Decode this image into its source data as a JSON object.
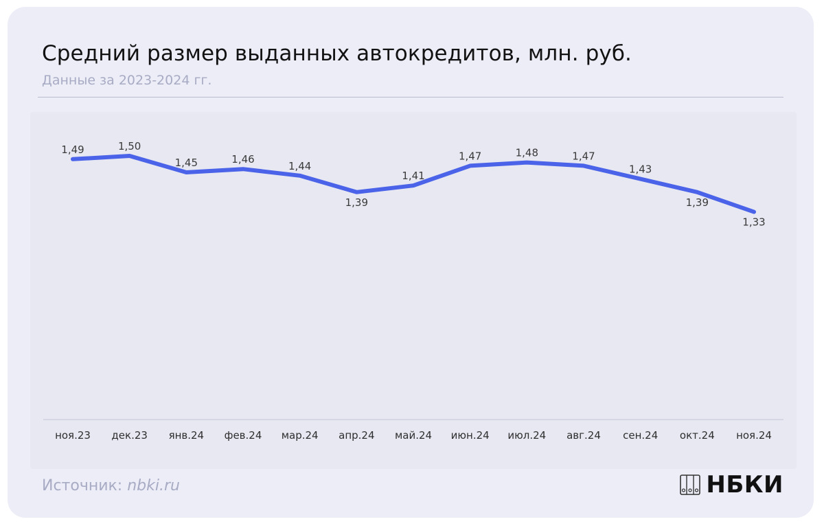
{
  "header": {
    "title": "Средний размер выданных автокредитов, млн. руб.",
    "subtitle": "Данные за 2023-2024 гг."
  },
  "footer": {
    "source_label": "Источник:",
    "source_site": "nbki.ru",
    "logo_text": "НБКИ"
  },
  "colors": {
    "line": "#4a63e8",
    "label": "#3a3a3a",
    "axis": "#c3c6d6"
  },
  "chart_data": {
    "type": "line",
    "categories": [
      "ноя.23",
      "дек.23",
      "янв.24",
      "фев.24",
      "мар.24",
      "апр.24",
      "май.24",
      "июн.24",
      "июл.24",
      "авг.24",
      "сен.24",
      "окт.24",
      "ноя.24"
    ],
    "series": [
      {
        "values": [
          1.49,
          1.5,
          1.45,
          1.46,
          1.44,
          1.39,
          1.41,
          1.47,
          1.48,
          1.47,
          1.43,
          1.39,
          1.33
        ],
        "labels": [
          "1,49",
          "1,50",
          "1,45",
          "1,46",
          "1,44",
          "1,39",
          "1,41",
          "1,47",
          "1,48",
          "1,47",
          "1,43",
          "1,39",
          "1,33"
        ],
        "label_position": [
          "above",
          "above",
          "above",
          "above",
          "above",
          "below",
          "above",
          "above",
          "above",
          "above",
          "above",
          "below",
          "below"
        ]
      }
    ],
    "ylim": [
      0.7,
      1.6
    ],
    "grid": false,
    "legend": "none"
  }
}
